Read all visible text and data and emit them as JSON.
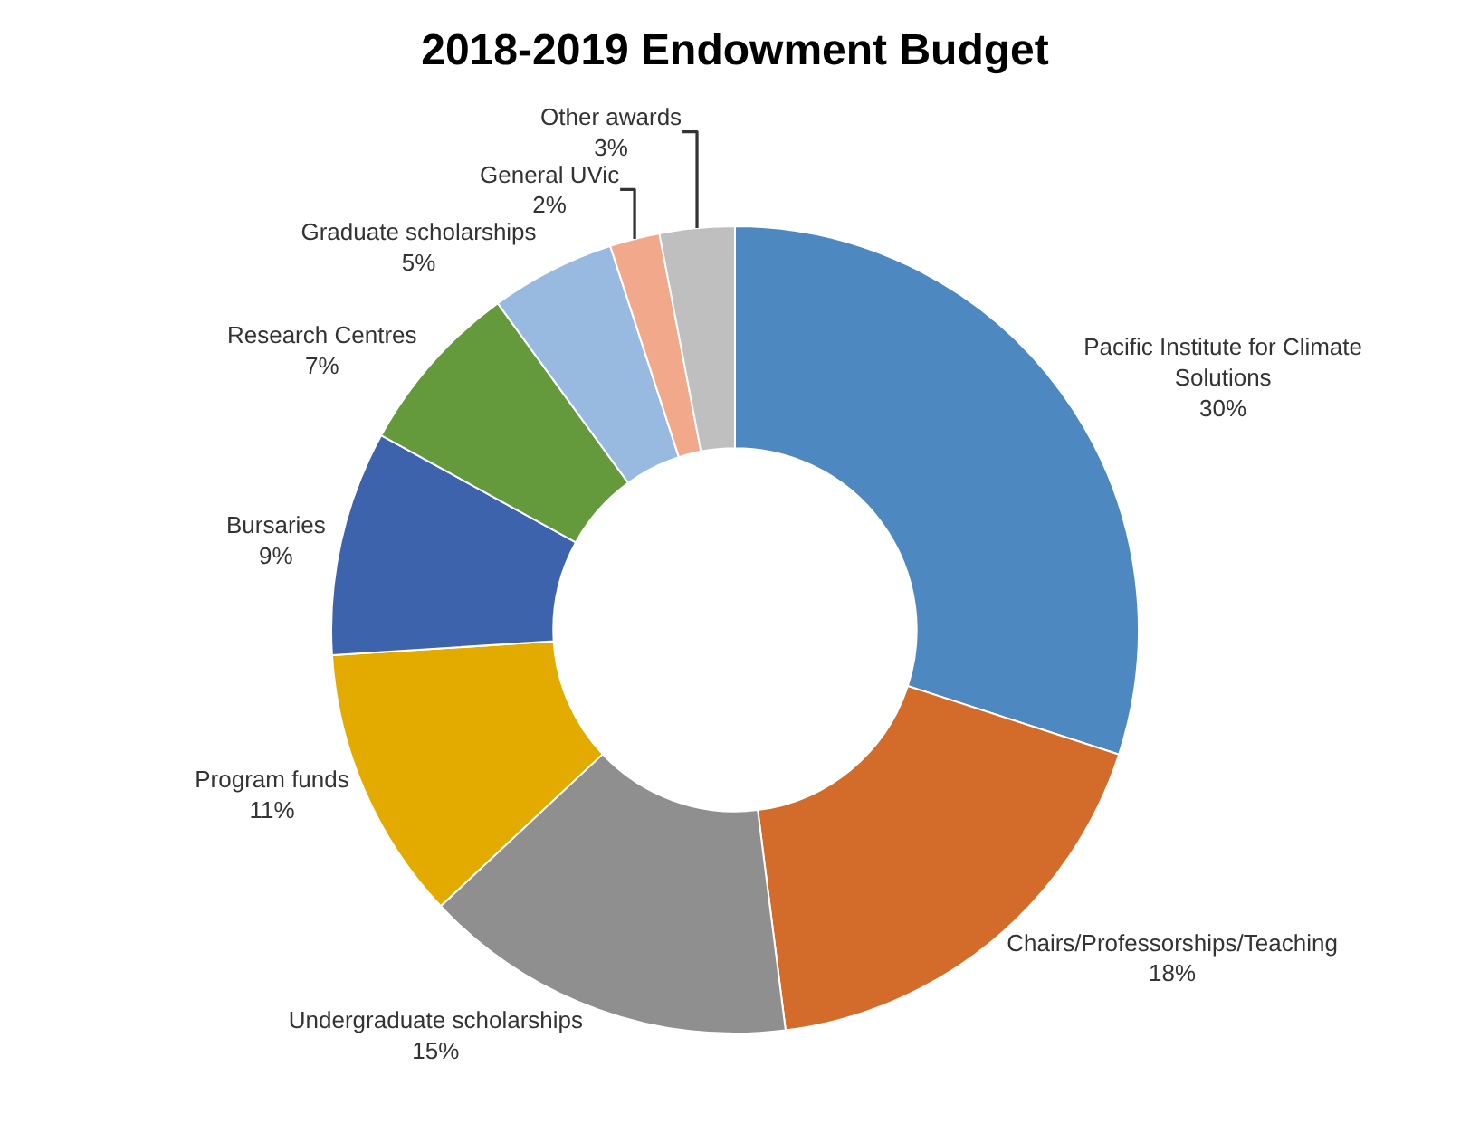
{
  "chart_data": {
    "type": "donut",
    "title": "2018-2019 Endowment Budget",
    "categories": [
      "Pacific Institute for Climate Solutions",
      "Chairs/Professorships/Teaching",
      "Undergraduate scholarships",
      "Program funds",
      "Bursaries",
      "Research Centres",
      "Graduate scholarships",
      "General UVic",
      "Other awards"
    ],
    "values": [
      30,
      18,
      15,
      11,
      9,
      7,
      5,
      2,
      3
    ],
    "value_labels": [
      "30%",
      "18%",
      "15%",
      "11%",
      "9%",
      "7%",
      "5%",
      "2%",
      "3%"
    ],
    "colors": [
      "#4e88c0",
      "#d36b2a",
      "#8f8f8f",
      "#e3aa00",
      "#3d63ad",
      "#649a3c",
      "#98b9e0",
      "#f2a98b",
      "#bfbfbf"
    ]
  }
}
